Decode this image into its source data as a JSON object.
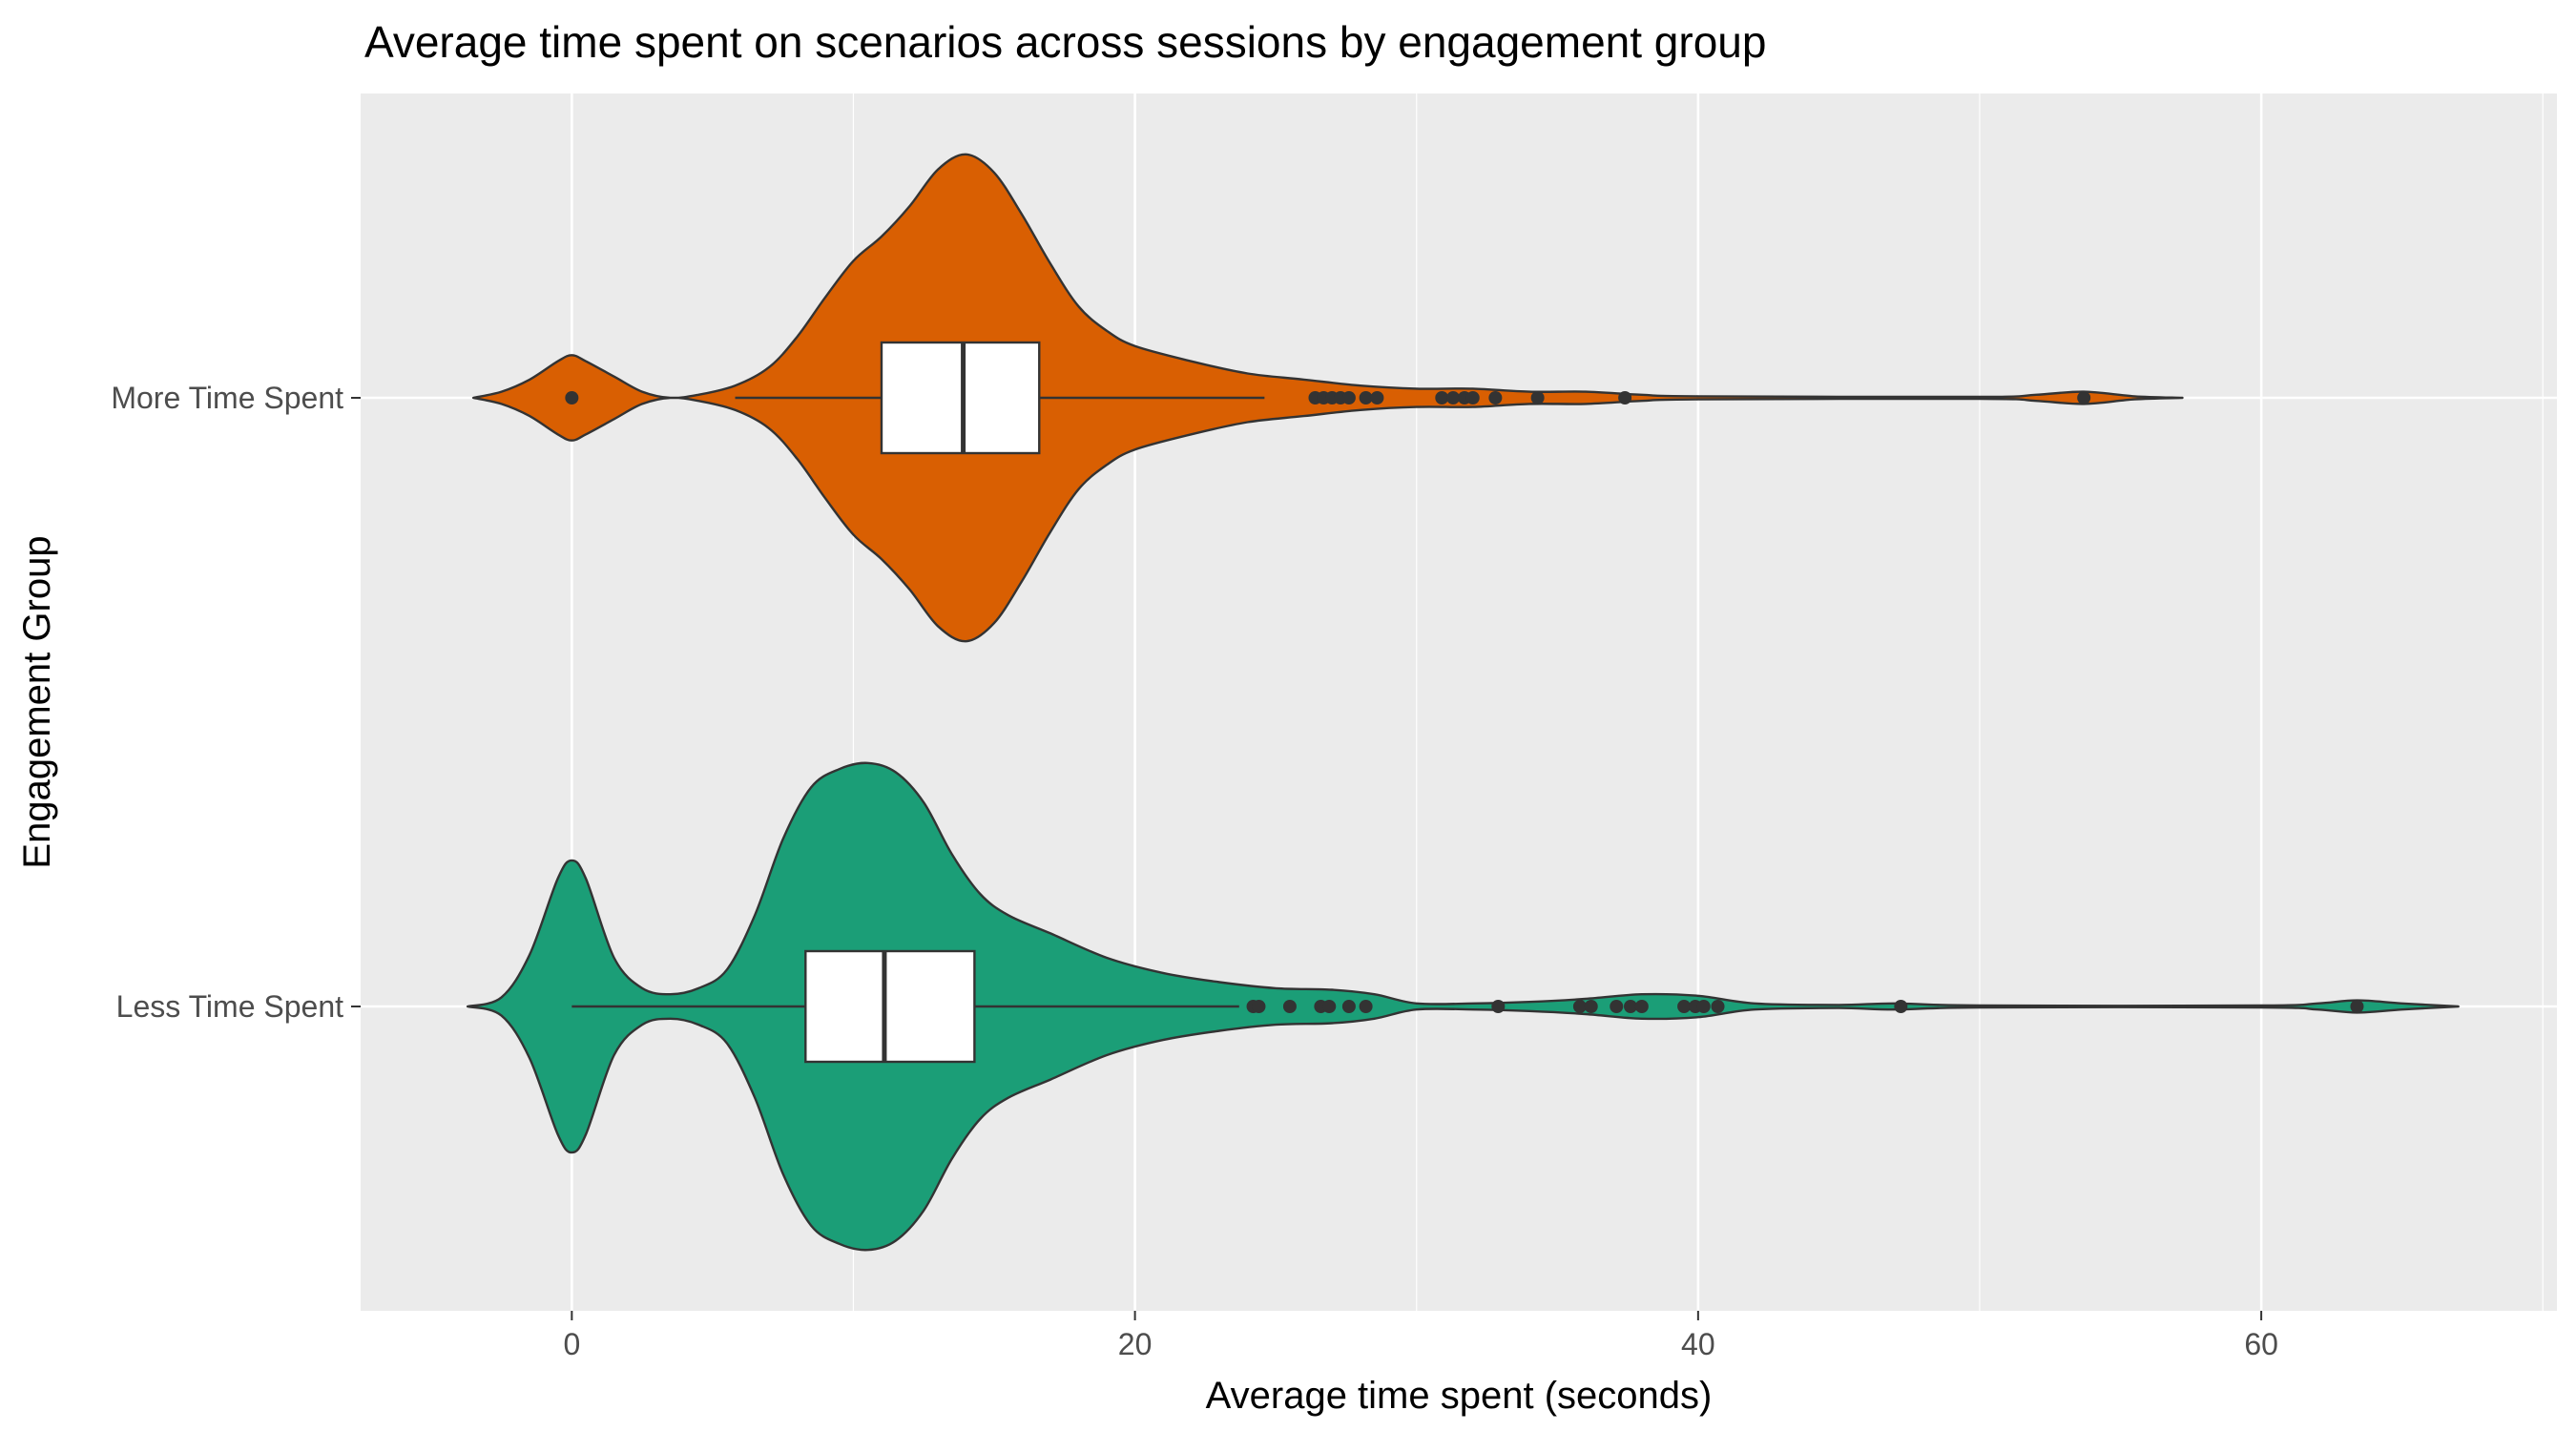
{
  "chart_data": {
    "type": "violin",
    "title": "Average time spent on scenarios across sessions by engagement group",
    "xlabel": "Average time spent (seconds)",
    "ylabel": "Engagement Group",
    "xlim": [
      -7.5,
      70.5
    ],
    "x_ticks": [
      0,
      20,
      40,
      60
    ],
    "x_tick_labels": [
      "0",
      "20",
      "40",
      "60"
    ],
    "grid": true,
    "orientation": "horizontal",
    "groups": [
      {
        "name": "More Time Spent",
        "color": "#d95f02",
        "box": {
          "whisker_low": 5.8,
          "q1": 11.0,
          "median": 13.9,
          "q3": 16.6,
          "whisker_high": 24.6
        },
        "outliers": [
          0,
          26.4,
          26.7,
          27.0,
          27.3,
          27.6,
          28.2,
          28.6,
          30.9,
          31.3,
          31.7,
          32.0,
          32.8,
          34.3,
          37.4,
          53.7
        ],
        "density": [
          [
            -3.5,
            0.0
          ],
          [
            -2.5,
            0.02
          ],
          [
            -1.5,
            0.06
          ],
          [
            -0.5,
            0.12
          ],
          [
            0.0,
            0.14
          ],
          [
            0.5,
            0.12
          ],
          [
            1.5,
            0.07
          ],
          [
            2.5,
            0.02
          ],
          [
            3.5,
            0.0
          ],
          [
            4.5,
            0.01
          ],
          [
            5.8,
            0.04
          ],
          [
            7.0,
            0.1
          ],
          [
            8.0,
            0.2
          ],
          [
            9.0,
            0.33
          ],
          [
            10.0,
            0.45
          ],
          [
            11.0,
            0.53
          ],
          [
            12.0,
            0.63
          ],
          [
            13.0,
            0.75
          ],
          [
            14.0,
            0.8
          ],
          [
            15.0,
            0.74
          ],
          [
            16.0,
            0.6
          ],
          [
            17.0,
            0.44
          ],
          [
            18.0,
            0.3
          ],
          [
            19.0,
            0.22
          ],
          [
            20.0,
            0.17
          ],
          [
            22.0,
            0.12
          ],
          [
            24.0,
            0.08
          ],
          [
            26.0,
            0.06
          ],
          [
            28.0,
            0.04
          ],
          [
            30.0,
            0.03
          ],
          [
            32.0,
            0.03
          ],
          [
            34.0,
            0.02
          ],
          [
            36.0,
            0.02
          ],
          [
            38.0,
            0.01
          ],
          [
            40.0,
            0.005
          ],
          [
            50.0,
            0.003
          ],
          [
            52.0,
            0.01
          ],
          [
            53.7,
            0.02
          ],
          [
            55.5,
            0.005
          ],
          [
            57.2,
            0.0
          ]
        ]
      },
      {
        "name": "Less Time Spent",
        "color": "#1b9e77",
        "box": {
          "whisker_low": 0.0,
          "q1": 8.3,
          "median": 11.1,
          "q3": 14.3,
          "whisker_high": 23.7
        },
        "outliers": [
          24.2,
          24.4,
          25.5,
          26.6,
          26.9,
          27.6,
          28.2,
          32.9,
          35.8,
          36.2,
          37.1,
          37.6,
          38.0,
          39.5,
          39.9,
          40.2,
          40.7,
          47.2,
          63.4
        ],
        "density": [
          [
            -3.7,
            0.0
          ],
          [
            -2.5,
            0.03
          ],
          [
            -1.5,
            0.17
          ],
          [
            -0.5,
            0.42
          ],
          [
            0.0,
            0.48
          ],
          [
            0.5,
            0.42
          ],
          [
            1.5,
            0.16
          ],
          [
            2.5,
            0.06
          ],
          [
            3.5,
            0.04
          ],
          [
            4.5,
            0.06
          ],
          [
            5.5,
            0.12
          ],
          [
            6.5,
            0.3
          ],
          [
            7.5,
            0.55
          ],
          [
            8.5,
            0.72
          ],
          [
            9.5,
            0.78
          ],
          [
            10.5,
            0.8
          ],
          [
            11.5,
            0.77
          ],
          [
            12.5,
            0.67
          ],
          [
            13.5,
            0.5
          ],
          [
            14.5,
            0.37
          ],
          [
            15.5,
            0.3
          ],
          [
            17.0,
            0.24
          ],
          [
            19.0,
            0.16
          ],
          [
            21.0,
            0.11
          ],
          [
            23.0,
            0.08
          ],
          [
            25.0,
            0.06
          ],
          [
            27.0,
            0.055
          ],
          [
            28.5,
            0.04
          ],
          [
            30.0,
            0.01
          ],
          [
            32.0,
            0.01
          ],
          [
            34.0,
            0.015
          ],
          [
            36.0,
            0.025
          ],
          [
            38.0,
            0.04
          ],
          [
            40.0,
            0.035
          ],
          [
            42.0,
            0.01
          ],
          [
            45.0,
            0.005
          ],
          [
            47.0,
            0.01
          ],
          [
            50.0,
            0.003
          ],
          [
            60.0,
            0.003
          ],
          [
            62.0,
            0.01
          ],
          [
            63.4,
            0.02
          ],
          [
            65.0,
            0.01
          ],
          [
            67.0,
            0.0
          ]
        ]
      }
    ]
  }
}
